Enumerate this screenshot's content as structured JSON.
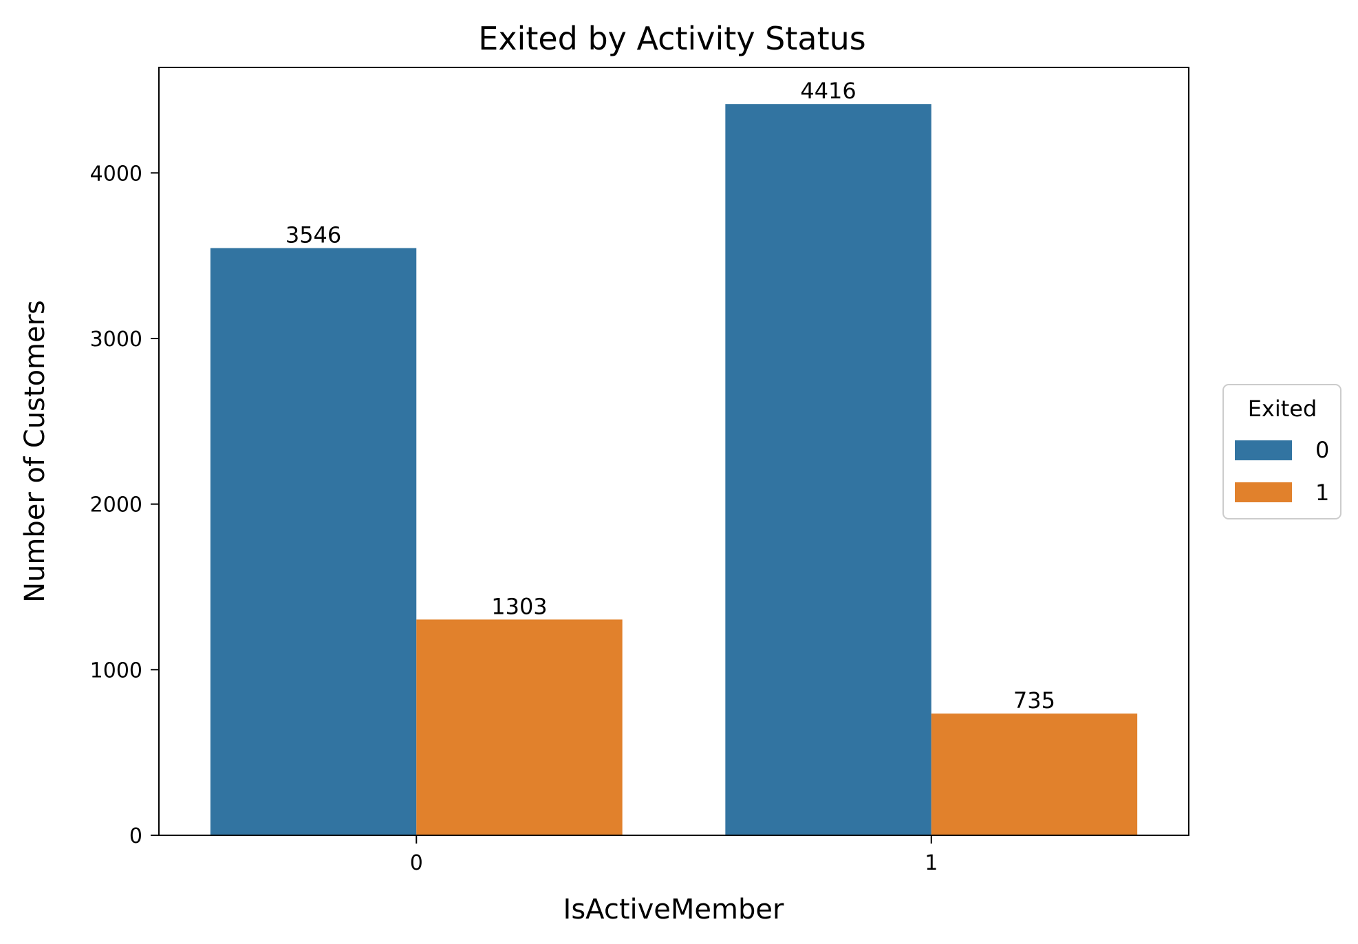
{
  "chart_data": {
    "type": "bar",
    "title": "Exited by Activity Status",
    "xlabel": "IsActiveMember",
    "ylabel": "Number of Customers",
    "categories": [
      "0",
      "1"
    ],
    "series": [
      {
        "name": "0",
        "color": "#3274a1",
        "values": [
          3546,
          4416
        ],
        "labels": [
          "3546",
          "4416"
        ]
      },
      {
        "name": "1",
        "color": "#e1812c",
        "values": [
          1303,
          735
        ],
        "labels": [
          "1303",
          "735"
        ]
      }
    ],
    "ylim": [
      0,
      4637
    ],
    "yticks": [
      0,
      1000,
      2000,
      3000,
      4000
    ],
    "ytick_labels": [
      "0",
      "1000",
      "2000",
      "3000",
      "4000"
    ],
    "grid": false,
    "legend": {
      "title": "Exited",
      "placement": "outside-right"
    }
  }
}
